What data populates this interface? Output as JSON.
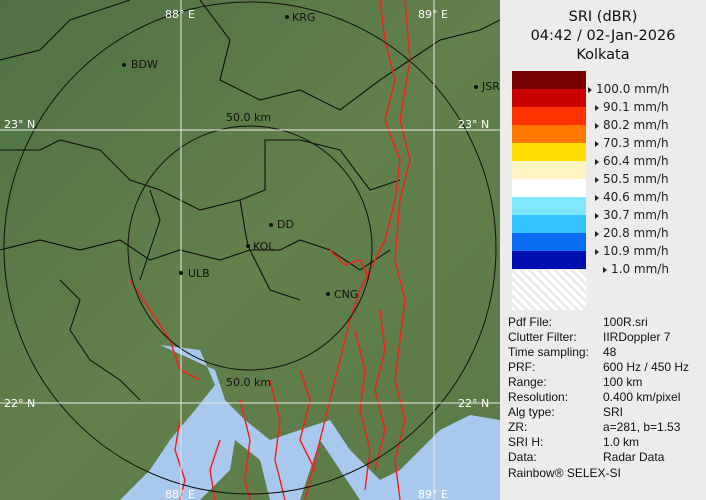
{
  "map": {
    "grid_labels": {
      "lon_left": "88° E",
      "lon_right": "89° E",
      "lat_top": "23° N",
      "lat_bottom": "22° N"
    },
    "range_rings": [
      "50.0 km",
      "50.0 km"
    ],
    "cities": [
      "KRG",
      "BDW",
      "JSR",
      "DD",
      "KOL",
      "ULB",
      "CNG"
    ],
    "colors": {
      "land": "#5b7a4a",
      "water": "#a8c8ee",
      "rivers": "#ff1a1a",
      "borders": "#111111"
    }
  },
  "legend": {
    "title": "SRI (dBR)",
    "datetime": "04:42 / 02-Jan-2026",
    "site": "Kolkata",
    "scale": [
      {
        "label": "100.0 mm/h",
        "color": "#7a0000"
      },
      {
        "label": "90.1 mm/h",
        "color": "#c80000"
      },
      {
        "label": "80.2 mm/h",
        "color": "#ff3300"
      },
      {
        "label": "70.3 mm/h",
        "color": "#ff7700"
      },
      {
        "label": "60.4 mm/h",
        "color": "#ffdd00"
      },
      {
        "label": "50.5 mm/h",
        "color": "#fff4c0"
      },
      {
        "label": "40.6 mm/h",
        "color": "#ffffff"
      },
      {
        "label": "30.7 mm/h",
        "color": "#7fe8ff"
      },
      {
        "label": "20.8 mm/h",
        "color": "#33c4ff"
      },
      {
        "label": "10.9 mm/h",
        "color": "#0a6cf0"
      },
      {
        "label": "1.0 mm/h",
        "color": "#0010b0"
      }
    ]
  },
  "info": [
    {
      "key": "Pdf File:",
      "value": "100R.sri"
    },
    {
      "key": "Clutter Filter:",
      "value": "IIRDoppler 7"
    },
    {
      "key": "Time sampling:",
      "value": "48"
    },
    {
      "key": "PRF:",
      "value": "600 Hz / 450 Hz"
    },
    {
      "key": "Range:",
      "value": "100 km"
    },
    {
      "key": "Resolution:",
      "value": "0.400 km/pixel"
    },
    {
      "key": "Alg type:",
      "value": "SRI"
    },
    {
      "key": "ZR:",
      "value": "a=281, b=1.53"
    },
    {
      "key": "SRI H:",
      "value": "1.0 km"
    },
    {
      "key": "Data:",
      "value": "Radar Data"
    }
  ],
  "footer": "Rainbow® SELEX-SI"
}
